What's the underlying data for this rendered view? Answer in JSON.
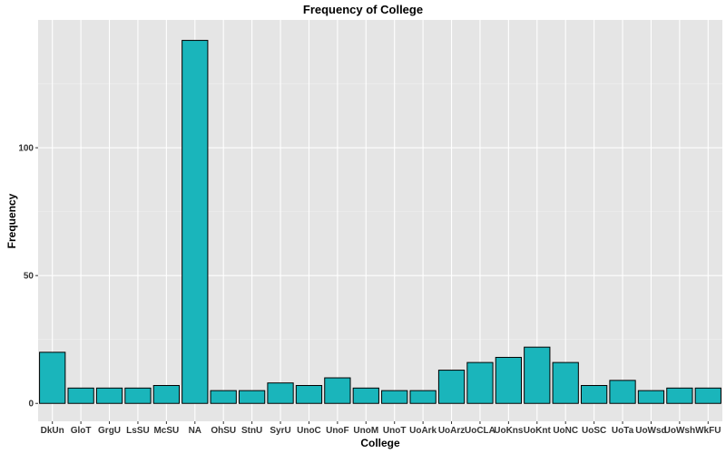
{
  "chart_data": {
    "type": "bar",
    "title": "Frequency of College",
    "xlabel": "College",
    "ylabel": "Frequency",
    "categories": [
      "DkUn",
      "GloT",
      "GrgU",
      "LsSU",
      "McSU",
      "NA",
      "OhSU",
      "StnU",
      "SyrU",
      "UnoC",
      "UnoF",
      "UnoM",
      "UnoT",
      "UoArk",
      "UoArz",
      "UoCLA",
      "UoKns",
      "UoKnt",
      "UoNC",
      "UoSC",
      "UoTa",
      "UoWsd",
      "UoWsh",
      "WkFU"
    ],
    "values": [
      20,
      6,
      6,
      6,
      7,
      142,
      5,
      5,
      8,
      7,
      10,
      6,
      5,
      5,
      13,
      16,
      18,
      22,
      16,
      7,
      9,
      5,
      6,
      6
    ],
    "yticks": [
      0,
      50,
      100
    ],
    "ylim": [
      -7,
      150
    ],
    "grid": true,
    "colors": {
      "bar_fill": "#1ab5bb",
      "bar_stroke": "#000000",
      "panel_bg": "#e5e5e5",
      "grid_major": "#ffffff",
      "grid_minor": "#f0f0f0"
    }
  }
}
